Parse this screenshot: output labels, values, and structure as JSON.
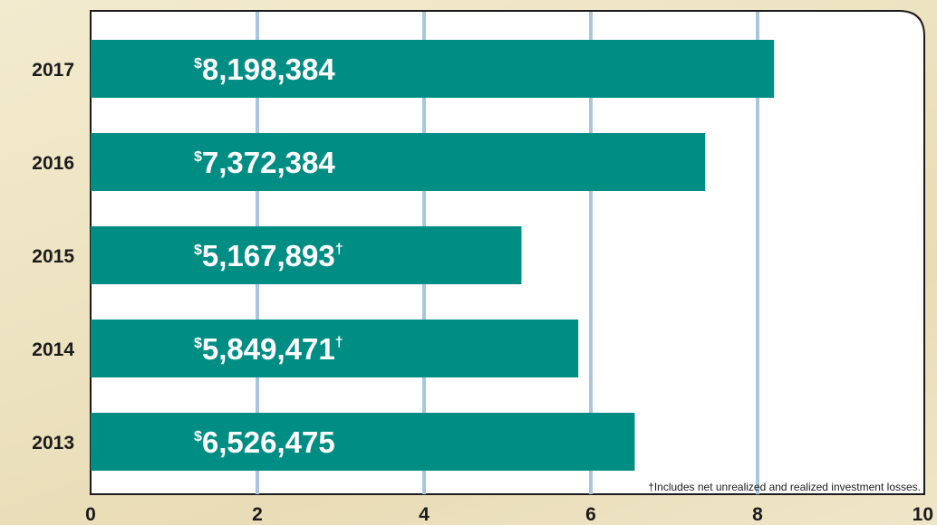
{
  "chart_data": {
    "type": "bar",
    "orientation": "horizontal",
    "categories": [
      "2017",
      "2016",
      "2015",
      "2014",
      "2013"
    ],
    "values": [
      8.198384,
      7.372384,
      5.167893,
      5.849471,
      6.526475
    ],
    "value_labels": [
      "8,198,384",
      "7,372,384",
      "5,167,893",
      "5,849,471",
      "6,526,475"
    ],
    "label_prefix": "$",
    "label_daggers": [
      "",
      "",
      "†",
      "†",
      ""
    ],
    "xlim": [
      0,
      10
    ],
    "x_ticks": [
      "0",
      "2",
      "4",
      "6",
      "8",
      "10"
    ],
    "grid": true,
    "bar_color": "#008e84",
    "grid_color": "#a9c6dc",
    "footnote": "†Includes net unrealized and realized investment losses."
  }
}
